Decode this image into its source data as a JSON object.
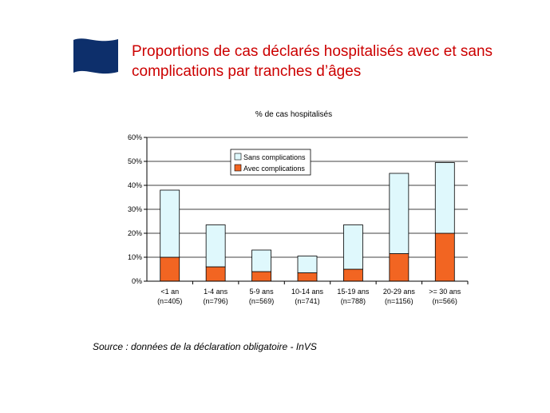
{
  "slide": {
    "title_line1": "Proportions de cas déclarés hospitalisés avec et sans",
    "title_line2": "complications par tranches d’âges",
    "source": "Source : données de la déclaration obligatoire - InVS",
    "title_color": "#cc0000",
    "logo_icon": "flag-icon",
    "logo_color": "#0d2f6b"
  },
  "chart_data": {
    "type": "bar",
    "stacked": true,
    "title": "% de cas hospitalisés",
    "categories": [
      {
        "line1": "<1 an",
        "line2": "(n=405)"
      },
      {
        "line1": "1-4 ans",
        "line2": "(n=796)"
      },
      {
        "line1": "5-9 ans",
        "line2": "(n=569)"
      },
      {
        "line1": "10-14 ans",
        "line2": "(n=741)"
      },
      {
        "line1": "15-19 ans",
        "line2": "(n=788)"
      },
      {
        "line1": "20-29 ans",
        "line2": "(n=1156)"
      },
      {
        "line1": ">= 30 ans",
        "line2": "(n=566)"
      }
    ],
    "series": [
      {
        "name": "Avec complications",
        "color": "#f26522",
        "values": [
          10,
          6,
          4,
          3.5,
          5,
          11.5,
          20
        ]
      },
      {
        "name": "Sans complications",
        "color": "#dff8fc",
        "values": [
          28,
          17.5,
          9,
          7,
          18.5,
          33.5,
          29.5
        ]
      }
    ],
    "legend_order": [
      "Sans complications",
      "Avec complications"
    ],
    "legend_position": "top-left",
    "ylim": [
      0,
      60
    ],
    "yticks": [
      "0%",
      "10%",
      "20%",
      "30%",
      "40%",
      "50%",
      "60%"
    ],
    "grid": true
  }
}
